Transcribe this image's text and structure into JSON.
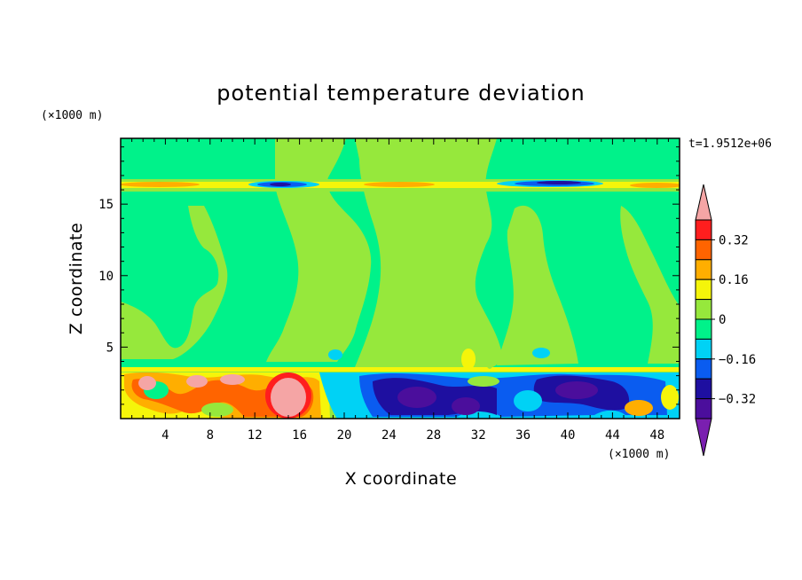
{
  "chart_data": {
    "type": "heatmap",
    "title": "potential temperature deviation",
    "xlabel": "X coordinate",
    "ylabel": "Z coordinate",
    "x_unit": "(×1000 m)",
    "y_unit": "(×1000 m)",
    "time_label": "t=1.9512e+06",
    "xlim": [
      0,
      50
    ],
    "ylim": [
      0,
      19.6
    ],
    "x_ticks": [
      4,
      8,
      12,
      16,
      20,
      24,
      28,
      32,
      36,
      40,
      44,
      48
    ],
    "y_ticks": [
      5,
      10,
      15
    ],
    "colorbar": {
      "levels": [
        -0.48,
        -0.4,
        -0.32,
        -0.24,
        -0.16,
        -0.08,
        0,
        0.08,
        0.16,
        0.24,
        0.32,
        0.4
      ],
      "tick_labels": [
        "0.32",
        "0.16",
        "0",
        "−0.16",
        "−0.32"
      ],
      "tick_values": [
        0.32,
        0.16,
        0,
        -0.16,
        -0.32
      ],
      "colors": [
        "#7a1fb0",
        "#4b0e9c",
        "#1e0fa0",
        "#0a5cf0",
        "#00d2f5",
        "#00f28a",
        "#96e83c",
        "#f5f50a",
        "#ffae00",
        "#ff6400",
        "#ff1e1e",
        "#f5a5a5"
      ]
    },
    "background_value": -0.04
  }
}
